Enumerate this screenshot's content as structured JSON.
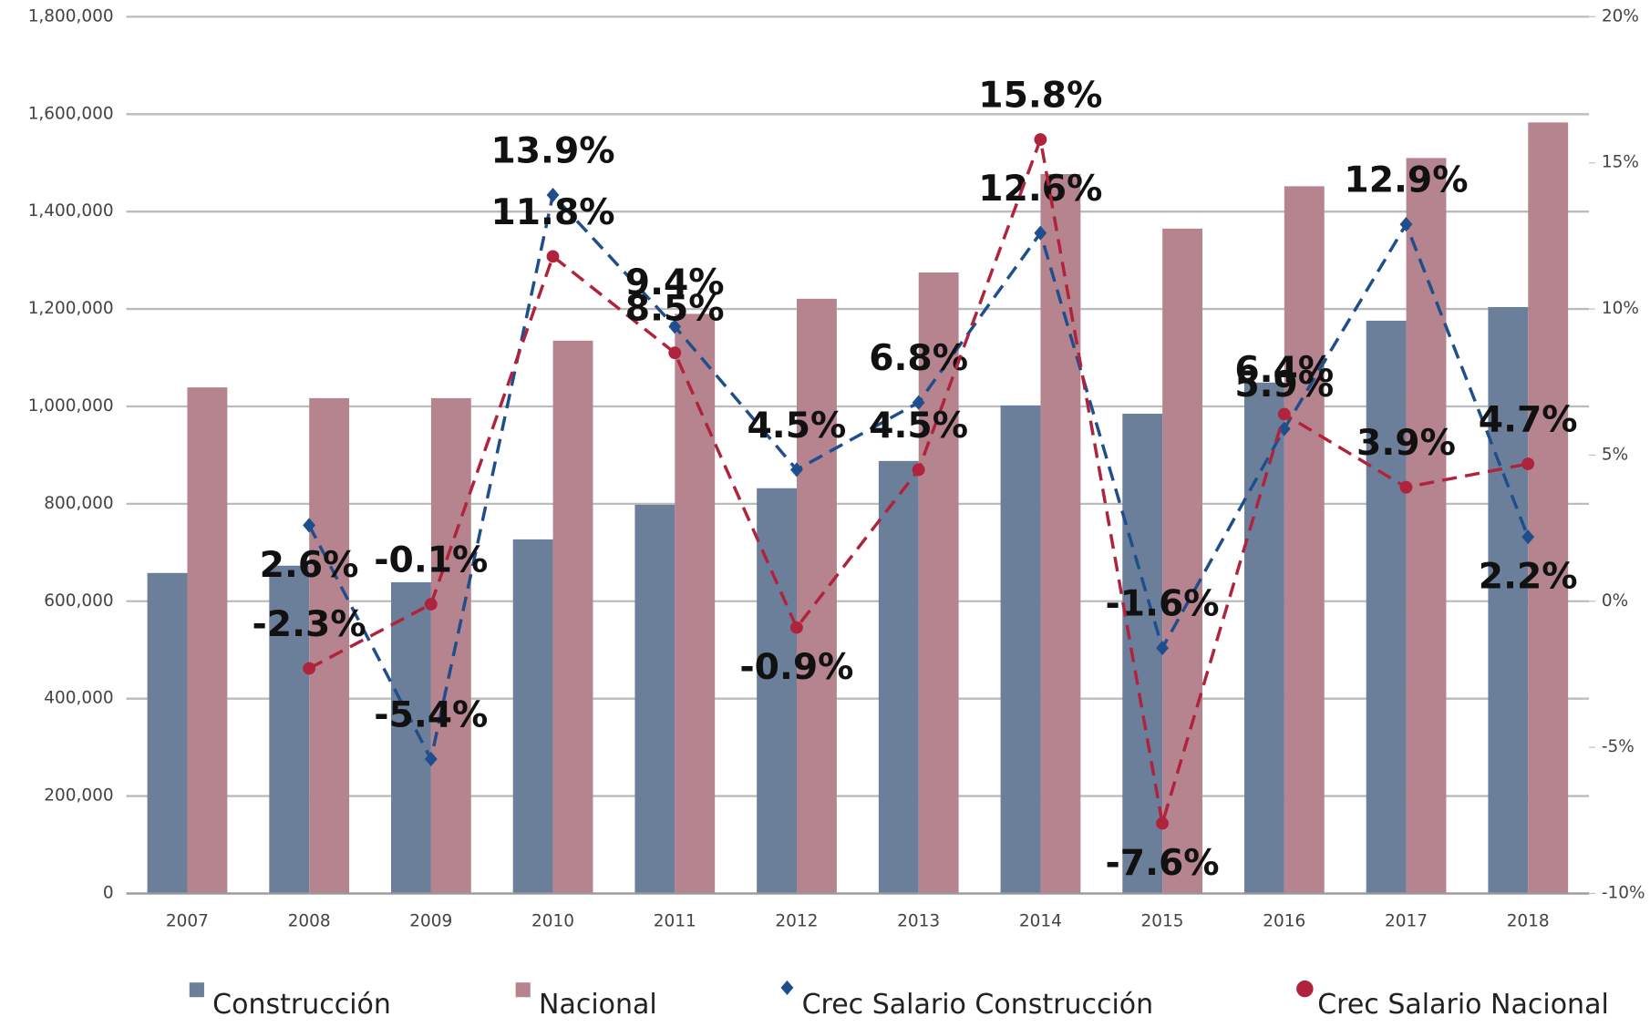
{
  "chart_data": {
    "type": "bar-line",
    "categories": [
      "2007",
      "2008",
      "2009",
      "2010",
      "2011",
      "2012",
      "2013",
      "2014",
      "2015",
      "2016",
      "2017",
      "2018"
    ],
    "series": [
      {
        "name": "Construcción",
        "type": "bar",
        "color": "#6b7f9a",
        "values": [
          658000,
          673000,
          639000,
          727000,
          798000,
          832000,
          888000,
          1002000,
          985000,
          1049000,
          1176000,
          1204000
        ]
      },
      {
        "name": "Nacional",
        "type": "bar",
        "color": "#b5848e",
        "values": [
          1039000,
          1017000,
          1017000,
          1135000,
          1190000,
          1221000,
          1275000,
          1477000,
          1365000,
          1452000,
          1510000,
          1583000
        ]
      },
      {
        "name": "Crec Salario Construcción",
        "type": "line",
        "axis": "y2",
        "color": "#1f4e8c",
        "marker": "diamond",
        "values": [
          null,
          2.6,
          -5.4,
          13.9,
          9.4,
          4.5,
          6.8,
          12.6,
          -1.6,
          5.9,
          12.9,
          2.2
        ],
        "value_labels": [
          null,
          "2.6%",
          "-5.4%",
          "13.9%",
          "9.4%",
          "4.5%",
          "6.8%",
          "12.6%",
          "-1.6%",
          "5.9%",
          "12.9%",
          "2.2%"
        ]
      },
      {
        "name": "Crec Salario Nacional",
        "type": "line",
        "axis": "y2",
        "color": "#b0233c",
        "marker": "circle",
        "values": [
          null,
          -2.3,
          -0.1,
          11.8,
          8.5,
          -0.9,
          4.5,
          15.8,
          -7.6,
          6.4,
          3.9,
          4.7
        ],
        "value_labels": [
          null,
          "-2.3%",
          "-0.1%",
          "11.8%",
          "8.5%",
          "-0.9%",
          "4.5%",
          "15.8%",
          "-7.6%",
          "6.4%",
          "3.9%",
          "4.7%"
        ]
      }
    ],
    "ylim": [
      0,
      1800000
    ],
    "yticks": [
      0,
      {
        "value": 200000,
        "label": "200,000"
      },
      {
        "value": 400000,
        "label": "400,000"
      },
      {
        "value": 600000,
        "label": "600,000"
      },
      {
        "value": 800000,
        "label": "800,000"
      },
      {
        "value": 1000000,
        "label": "1,000,000"
      },
      {
        "value": 1200000,
        "label": "1,200,000"
      },
      {
        "value": 1400000,
        "label": "1,400,000"
      },
      {
        "value": 1600000,
        "label": "1,600,000"
      },
      {
        "value": 1800000,
        "label": "1,800,000"
      }
    ],
    "y2lim": [
      -10,
      20
    ],
    "y2ticks": [
      {
        "value": -10,
        "label": "-10%"
      },
      {
        "value": -5,
        "label": "-5%"
      },
      {
        "value": 0,
        "label": "0%"
      },
      {
        "value": 5,
        "label": "5%"
      },
      {
        "value": 10,
        "label": "10%"
      },
      {
        "value": 15,
        "label": "15%"
      },
      {
        "value": 20,
        "label": "20%"
      }
    ],
    "grid": true,
    "legend": "bottom"
  }
}
